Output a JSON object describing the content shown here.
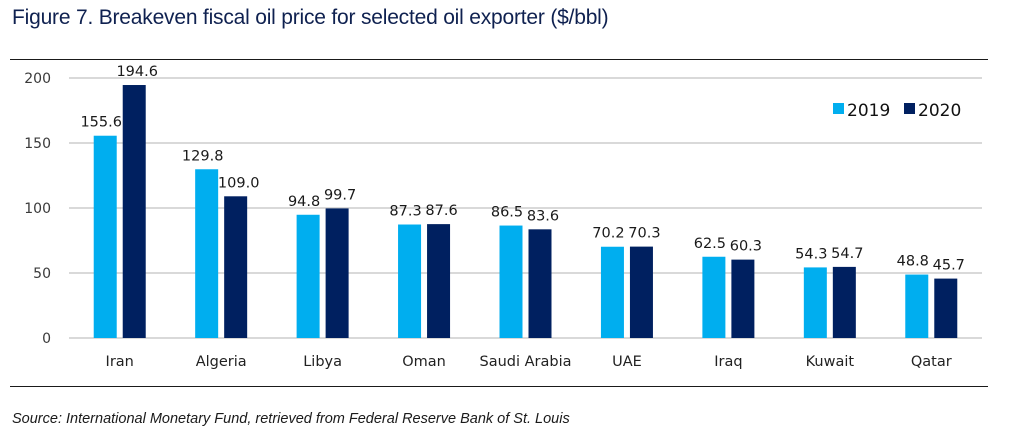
{
  "title": "Figure 7. Breakeven fiscal oil price for selected oil exporter ($/bbl)",
  "source": "Source: International Monetary Fund, retrieved from Federal Reserve Bank of St. Louis",
  "colors": {
    "series_2019": "#00AEEF",
    "series_2020": "#002060",
    "grid": "#d9d9d9",
    "title": "#0f2150"
  },
  "chart_data": {
    "type": "bar",
    "title": "Figure 7. Breakeven fiscal oil price for selected oil exporter ($/bbl)",
    "xlabel": "",
    "ylabel": "",
    "categories": [
      "Iran",
      "Algeria",
      "Libya",
      "Oman",
      "Saudi Arabia",
      "UAE",
      "Iraq",
      "Kuwait",
      "Qatar"
    ],
    "series": [
      {
        "name": "2019",
        "color": "#00AEEF",
        "values": [
          155.6,
          129.8,
          94.8,
          87.3,
          86.5,
          70.2,
          62.5,
          54.3,
          48.8
        ],
        "labels": [
          "155.6",
          "129.8",
          "94.8",
          "87.3",
          "86.5",
          "70.2",
          "62.5",
          "54.3",
          "48.8"
        ]
      },
      {
        "name": "2020",
        "color": "#002060",
        "values": [
          194.6,
          109.0,
          99.7,
          87.6,
          83.6,
          70.3,
          60.3,
          54.7,
          45.7
        ],
        "labels": [
          "194.6",
          "109.0",
          "99.7",
          "87.6",
          "83.6",
          "70.3",
          "60.3",
          "54.7",
          "45.7"
        ]
      }
    ],
    "ylim": [
      0,
      200
    ],
    "yticks": [
      0,
      50,
      100,
      150,
      200
    ],
    "ytick_labels": [
      "0",
      "50",
      "100",
      "150",
      "200"
    ],
    "grid": true,
    "legend": {
      "position": "top-right",
      "entries": [
        "2019",
        "2020"
      ]
    }
  }
}
